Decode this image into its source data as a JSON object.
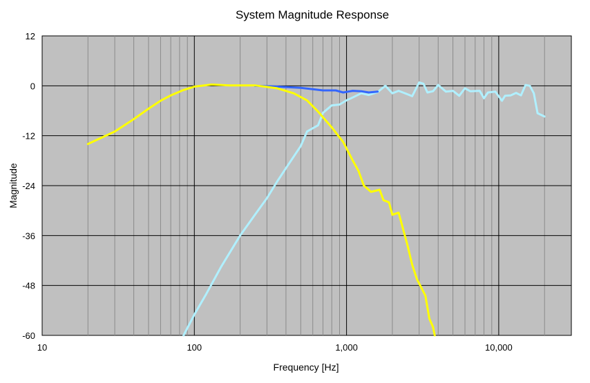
{
  "chart_data": {
    "type": "line",
    "title": "System Magnitude Response",
    "xlabel": "Frequency [Hz]",
    "ylabel": "Magnitude",
    "xscale": "log",
    "xlim": [
      10,
      30000
    ],
    "ylim": [
      -60,
      12
    ],
    "xticks": [
      10,
      100,
      1000,
      10000
    ],
    "xtick_labels": [
      "10",
      "100",
      "1,000",
      "10,000"
    ],
    "yticks": [
      12,
      0,
      -12,
      -24,
      -36,
      -48,
      -60
    ],
    "ytick_labels": [
      "12",
      "0",
      "-12",
      "-24",
      "-36",
      "-48",
      "-60"
    ],
    "grid": true,
    "legend": false,
    "plot_background": "#c0c0c0",
    "series": [
      {
        "color": "#3366ff",
        "points": [
          [
            250,
            0
          ],
          [
            350,
            -0.2
          ],
          [
            500,
            -0.5
          ],
          [
            600,
            -0.8
          ],
          [
            700,
            -1.1
          ],
          [
            850,
            -1.1
          ],
          [
            950,
            -1.6
          ],
          [
            1100,
            -1.2
          ],
          [
            1250,
            -1.3
          ],
          [
            1400,
            -1.6
          ],
          [
            1600,
            -1.4
          ]
        ]
      },
      {
        "color": "#ffff00",
        "points": [
          [
            20,
            -14
          ],
          [
            30,
            -11
          ],
          [
            40,
            -8
          ],
          [
            50,
            -5.5
          ],
          [
            60,
            -3.6
          ],
          [
            70,
            -2.3
          ],
          [
            85,
            -1
          ],
          [
            100,
            -0.2
          ],
          [
            130,
            0.3
          ],
          [
            170,
            0.1
          ],
          [
            250,
            0.1
          ],
          [
            350,
            -0.6
          ],
          [
            450,
            -1.8
          ],
          [
            550,
            -3.5
          ],
          [
            650,
            -6.2
          ],
          [
            800,
            -10
          ],
          [
            950,
            -13.5
          ],
          [
            1100,
            -18
          ],
          [
            1200,
            -20.5
          ],
          [
            1300,
            -24
          ],
          [
            1450,
            -25.5
          ],
          [
            1650,
            -25
          ],
          [
            1750,
            -27.5
          ],
          [
            1900,
            -28
          ],
          [
            2000,
            -31
          ],
          [
            2200,
            -30.5
          ],
          [
            2500,
            -38
          ],
          [
            2700,
            -43
          ],
          [
            2900,
            -46.5
          ],
          [
            3100,
            -48.5
          ],
          [
            3300,
            -50.5
          ],
          [
            3500,
            -56
          ],
          [
            3700,
            -58
          ],
          [
            3800,
            -60
          ]
        ]
      },
      {
        "color": "#b0f0ff",
        "points": [
          [
            85,
            -60
          ],
          [
            100,
            -55
          ],
          [
            120,
            -50
          ],
          [
            150,
            -43.5
          ],
          [
            200,
            -36
          ],
          [
            250,
            -31
          ],
          [
            300,
            -27
          ],
          [
            350,
            -23
          ],
          [
            400,
            -19.8
          ],
          [
            500,
            -14.5
          ],
          [
            550,
            -11
          ],
          [
            650,
            -9.5
          ],
          [
            700,
            -6.5
          ],
          [
            800,
            -4.7
          ],
          [
            900,
            -4.5
          ],
          [
            1000,
            -3.5
          ],
          [
            1100,
            -2.8
          ],
          [
            1250,
            -1.8
          ],
          [
            1400,
            -2.2
          ],
          [
            1600,
            -1.5
          ],
          [
            1800,
            0
          ],
          [
            2000,
            -1.8
          ],
          [
            2200,
            -1.2
          ],
          [
            2500,
            -2
          ],
          [
            2700,
            -2.5
          ],
          [
            3000,
            0.8
          ],
          [
            3200,
            0.5
          ],
          [
            3400,
            -1.6
          ],
          [
            3700,
            -1.3
          ],
          [
            4000,
            0.2
          ],
          [
            4500,
            -1.4
          ],
          [
            5000,
            -1.2
          ],
          [
            5500,
            -2.4
          ],
          [
            6000,
            -0.6
          ],
          [
            6500,
            -1.3
          ],
          [
            7500,
            -1.2
          ],
          [
            8000,
            -3
          ],
          [
            8500,
            -1.6
          ],
          [
            9500,
            -1.4
          ],
          [
            10500,
            -3.6
          ],
          [
            11000,
            -2.4
          ],
          [
            12000,
            -2.3
          ],
          [
            13000,
            -1.7
          ],
          [
            14000,
            -2.3
          ],
          [
            15000,
            0.2
          ],
          [
            16000,
            0
          ],
          [
            17000,
            -1.8
          ],
          [
            18000,
            -6.6
          ],
          [
            19000,
            -7
          ],
          [
            20000,
            -7.4
          ]
        ]
      }
    ]
  }
}
